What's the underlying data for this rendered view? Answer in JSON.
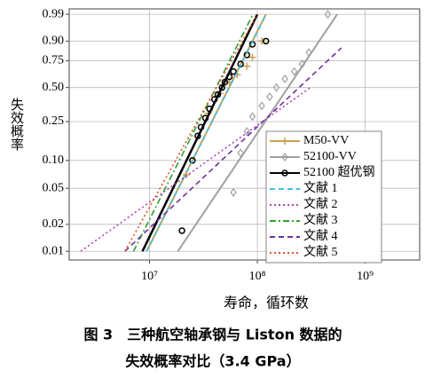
{
  "chart_data": {
    "type": "weibull",
    "x_label": "寿命，循环数",
    "y_label": "失效概率",
    "caption": [
      "图 3　三种航空轴承钢与 Liston 数据的",
      "失效概率对比（3.4 GPa）"
    ],
    "xscale": "log",
    "yscale": "weibull",
    "grid": true,
    "legend": "lower right",
    "xlim": [
      1800000,
      3200000000
    ],
    "ylim": [
      0.008,
      0.995
    ],
    "xticks": [
      {
        "value": 10000000,
        "label": "10⁷"
      },
      {
        "value": 100000000,
        "label": "10⁸"
      },
      {
        "value": 1000000000,
        "label": "10⁹"
      }
    ],
    "yticks": [
      0.99,
      {
        "value": 0.9,
        "label": "0.90"
      },
      0.75,
      {
        "value": 0.5,
        "label": "0.50"
      },
      0.25,
      {
        "value": 0.1,
        "label": "0.10"
      },
      0.05,
      0.02,
      0.01
    ],
    "series": [
      {
        "name": "M50-VV",
        "color": "#c8a050",
        "marker": "plus",
        "dash": "solid",
        "x": [
          22000000,
          35000000,
          45000000,
          55000000,
          65000000,
          80000000,
          90000000,
          110000000
        ],
        "values": [
          0.07,
          0.3,
          0.45,
          0.55,
          0.62,
          0.7,
          0.78,
          0.9
        ],
        "fit": {
          "x": [
            9400000,
            120000000
          ],
          "values": [
            0.01,
            0.99
          ]
        }
      },
      {
        "name": "52100-VV",
        "color": "#a0a0a0",
        "marker": "diamond",
        "dash": "solid",
        "x": [
          60000000,
          70000000,
          80000000,
          90000000,
          110000000,
          130000000,
          150000000,
          180000000,
          220000000,
          260000000,
          300000000,
          450000000
        ],
        "values": [
          0.045,
          0.12,
          0.2,
          0.28,
          0.35,
          0.42,
          0.5,
          0.58,
          0.65,
          0.72,
          0.82,
          0.99
        ],
        "fit": {
          "x": [
            18300000,
            550000000
          ],
          "values": [
            0.01,
            0.99
          ]
        }
      },
      {
        "name": "52100 超优钢",
        "color": "#000000",
        "marker": "circle",
        "dash": "solid",
        "x": [
          20000000,
          25000000,
          28000000,
          30000000,
          33000000,
          36000000,
          40000000,
          43000000,
          47000000,
          50000000,
          55000000,
          60000000,
          70000000,
          80000000,
          90000000,
          120000000
        ],
        "values": [
          0.017,
          0.1,
          0.18,
          0.22,
          0.27,
          0.33,
          0.4,
          0.44,
          0.5,
          0.55,
          0.6,
          0.65,
          0.72,
          0.8,
          0.88,
          0.9
        ],
        "fit": {
          "x": [
            8600000,
            100000000
          ],
          "values": [
            0.01,
            0.99
          ]
        }
      },
      {
        "name": "文献 1",
        "color": "#40c0e0",
        "dash": "dashed",
        "x": [
          9400000,
          121000000
        ],
        "values": [
          0.01,
          0.99
        ]
      },
      {
        "name": "文献 2",
        "color": "#b040b0",
        "dash": "dotted",
        "x": [
          2300000,
          310000000
        ],
        "values": [
          0.01,
          0.5
        ]
      },
      {
        "name": "文献 3",
        "color": "#30a030",
        "dash": "dashdot",
        "x": [
          7100000,
          91000000
        ],
        "values": [
          0.01,
          0.99
        ]
      },
      {
        "name": "文献 4",
        "color": "#7030a0",
        "dash": "dashed",
        "x": [
          5900000,
          600000000
        ],
        "values": [
          0.01,
          0.855
        ]
      },
      {
        "name": "文献 5",
        "color": "#e05020",
        "dash": "dotted",
        "x": [
          5900000,
          100000000
        ],
        "values": [
          0.01,
          0.99
        ]
      }
    ]
  }
}
